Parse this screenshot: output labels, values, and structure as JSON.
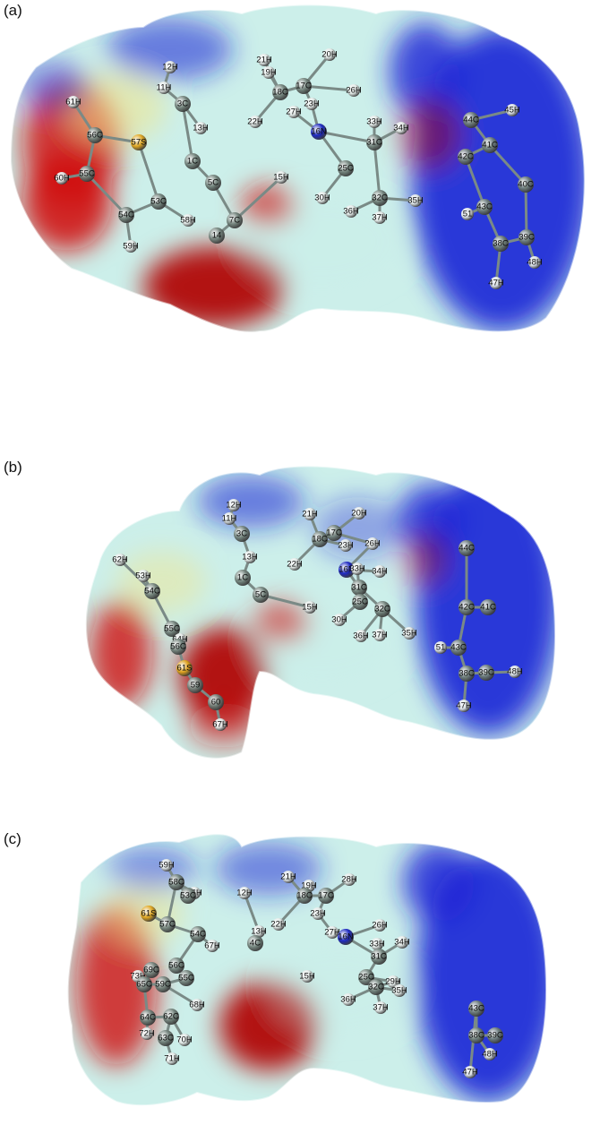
{
  "panels": [
    {
      "label": "(a)",
      "atoms": [
        {
          "t": "61H",
          "e": "H"
        },
        {
          "t": "56C",
          "e": "C"
        },
        {
          "t": "57S",
          "e": "S"
        },
        {
          "t": "60H",
          "e": "H"
        },
        {
          "t": "55C",
          "e": "C"
        },
        {
          "t": "54C",
          "e": "C"
        },
        {
          "t": "53C",
          "e": "C"
        },
        {
          "t": "58H",
          "e": "H"
        },
        {
          "t": "59H",
          "e": "H"
        },
        {
          "t": "12H",
          "e": "H"
        },
        {
          "t": "11H",
          "e": "H"
        },
        {
          "t": "3C",
          "e": "C"
        },
        {
          "t": "13H",
          "e": "H"
        },
        {
          "t": "1C",
          "e": "C"
        },
        {
          "t": "5C",
          "e": "C"
        },
        {
          "t": "7C",
          "e": "C"
        },
        {
          "t": "14",
          "e": "C"
        },
        {
          "t": "15H",
          "e": "H"
        },
        {
          "t": "21H",
          "e": "H"
        },
        {
          "t": "19H",
          "e": "H"
        },
        {
          "t": "18C",
          "e": "C"
        },
        {
          "t": "17C",
          "e": "C"
        },
        {
          "t": "20H",
          "e": "H"
        },
        {
          "t": "23H",
          "e": "H"
        },
        {
          "t": "27H",
          "e": "H"
        },
        {
          "t": "22H",
          "e": "H"
        },
        {
          "t": "26H",
          "e": "H"
        },
        {
          "t": "16N",
          "e": "N"
        },
        {
          "t": "33H",
          "e": "H"
        },
        {
          "t": "34H",
          "e": "H"
        },
        {
          "t": "31C",
          "e": "C"
        },
        {
          "t": "25C",
          "e": "C"
        },
        {
          "t": "30H",
          "e": "H"
        },
        {
          "t": "32C",
          "e": "C"
        },
        {
          "t": "35H",
          "e": "H"
        },
        {
          "t": "36H",
          "e": "H"
        },
        {
          "t": "37H",
          "e": "H"
        },
        {
          "t": "44C",
          "e": "C"
        },
        {
          "t": "41C",
          "e": "C"
        },
        {
          "t": "42C",
          "e": "C"
        },
        {
          "t": "45H",
          "e": "H"
        },
        {
          "t": "40C",
          "e": "C"
        },
        {
          "t": "43C",
          "e": "C"
        },
        {
          "t": "51",
          "e": "H"
        },
        {
          "t": "38C",
          "e": "C"
        },
        {
          "t": "39C",
          "e": "C"
        },
        {
          "t": "48H",
          "e": "H"
        },
        {
          "t": "47H",
          "e": "H"
        }
      ]
    },
    {
      "label": "(b)",
      "atoms": [
        {
          "t": "62H",
          "e": "H"
        },
        {
          "t": "53H",
          "e": "H"
        },
        {
          "t": "54C",
          "e": "C"
        },
        {
          "t": "55C",
          "e": "C"
        },
        {
          "t": "64H",
          "e": "H"
        },
        {
          "t": "56C",
          "e": "C"
        },
        {
          "t": "61S",
          "e": "S"
        },
        {
          "t": "59",
          "e": "C"
        },
        {
          "t": "60",
          "e": "C"
        },
        {
          "t": "67H",
          "e": "H"
        },
        {
          "t": "12H",
          "e": "H"
        },
        {
          "t": "11H",
          "e": "H"
        },
        {
          "t": "3C",
          "e": "C"
        },
        {
          "t": "13H",
          "e": "H"
        },
        {
          "t": "1C",
          "e": "C"
        },
        {
          "t": "5C",
          "e": "C"
        },
        {
          "t": "15H",
          "e": "H"
        },
        {
          "t": "21H",
          "e": "H"
        },
        {
          "t": "20H",
          "e": "H"
        },
        {
          "t": "18C",
          "e": "C"
        },
        {
          "t": "17C",
          "e": "C"
        },
        {
          "t": "23H",
          "e": "H"
        },
        {
          "t": "22H",
          "e": "H"
        },
        {
          "t": "26H",
          "e": "H"
        },
        {
          "t": "16N",
          "e": "N"
        },
        {
          "t": "33H",
          "e": "H"
        },
        {
          "t": "34H",
          "e": "H"
        },
        {
          "t": "31C",
          "e": "C"
        },
        {
          "t": "25C",
          "e": "C"
        },
        {
          "t": "30H",
          "e": "H"
        },
        {
          "t": "32C",
          "e": "C"
        },
        {
          "t": "35H",
          "e": "H"
        },
        {
          "t": "36H",
          "e": "H"
        },
        {
          "t": "37H",
          "e": "H"
        },
        {
          "t": "44C",
          "e": "C"
        },
        {
          "t": "42C",
          "e": "C"
        },
        {
          "t": "41C",
          "e": "C"
        },
        {
          "t": "51",
          "e": "H"
        },
        {
          "t": "43C",
          "e": "C"
        },
        {
          "t": "38C",
          "e": "C"
        },
        {
          "t": "39C",
          "e": "C"
        },
        {
          "t": "48H",
          "e": "H"
        },
        {
          "t": "47H",
          "e": "H"
        }
      ]
    },
    {
      "label": "(c)",
      "atoms": [
        {
          "t": "59H",
          "e": "H"
        },
        {
          "t": "58C",
          "e": "C"
        },
        {
          "t": "66H",
          "e": "H"
        },
        {
          "t": "53C",
          "e": "C"
        },
        {
          "t": "61S",
          "e": "S"
        },
        {
          "t": "57C",
          "e": "C"
        },
        {
          "t": "54C",
          "e": "C"
        },
        {
          "t": "67H",
          "e": "H"
        },
        {
          "t": "56C",
          "e": "C"
        },
        {
          "t": "55C",
          "e": "C"
        },
        {
          "t": "73H",
          "e": "H"
        },
        {
          "t": "69C",
          "e": "C"
        },
        {
          "t": "65C",
          "e": "C"
        },
        {
          "t": "59C",
          "e": "C"
        },
        {
          "t": "68H",
          "e": "H"
        },
        {
          "t": "64C",
          "e": "C"
        },
        {
          "t": "62C",
          "e": "C"
        },
        {
          "t": "72H",
          "e": "H"
        },
        {
          "t": "63C",
          "e": "C"
        },
        {
          "t": "70H",
          "e": "H"
        },
        {
          "t": "71H",
          "e": "H"
        },
        {
          "t": "12H",
          "e": "H"
        },
        {
          "t": "13H",
          "e": "H"
        },
        {
          "t": "4C",
          "e": "C"
        },
        {
          "t": "21H",
          "e": "H"
        },
        {
          "t": "19H",
          "e": "H"
        },
        {
          "t": "18C",
          "e": "C"
        },
        {
          "t": "17C",
          "e": "C"
        },
        {
          "t": "28H",
          "e": "H"
        },
        {
          "t": "22H",
          "e": "H"
        },
        {
          "t": "23H",
          "e": "H"
        },
        {
          "t": "27H",
          "e": "H"
        },
        {
          "t": "16N",
          "e": "N"
        },
        {
          "t": "26H",
          "e": "H"
        },
        {
          "t": "33H",
          "e": "H"
        },
        {
          "t": "34H",
          "e": "H"
        },
        {
          "t": "31C",
          "e": "C"
        },
        {
          "t": "25C",
          "e": "C"
        },
        {
          "t": "29H",
          "e": "H"
        },
        {
          "t": "32C",
          "e": "C"
        },
        {
          "t": "35H",
          "e": "H"
        },
        {
          "t": "36H",
          "e": "H"
        },
        {
          "t": "37H",
          "e": "H"
        },
        {
          "t": "15H",
          "e": "H"
        },
        {
          "t": "43C",
          "e": "C"
        },
        {
          "t": "38C",
          "e": "C"
        },
        {
          "t": "39C",
          "e": "C"
        },
        {
          "t": "48H",
          "e": "H"
        },
        {
          "t": "47H",
          "e": "H"
        }
      ]
    }
  ],
  "colors": {
    "negative": "#d01010",
    "negative_dark": "#b00000",
    "neutral": "#c8eee8",
    "positive": "#1a22d6",
    "positive_dark": "#0a10b8",
    "yellow": "#f1e58a",
    "carbon": "#6f7f78",
    "hydrogen": "#e4eae8",
    "sulfur": "#e0a41a",
    "nitrogen": "#1520c0"
  }
}
